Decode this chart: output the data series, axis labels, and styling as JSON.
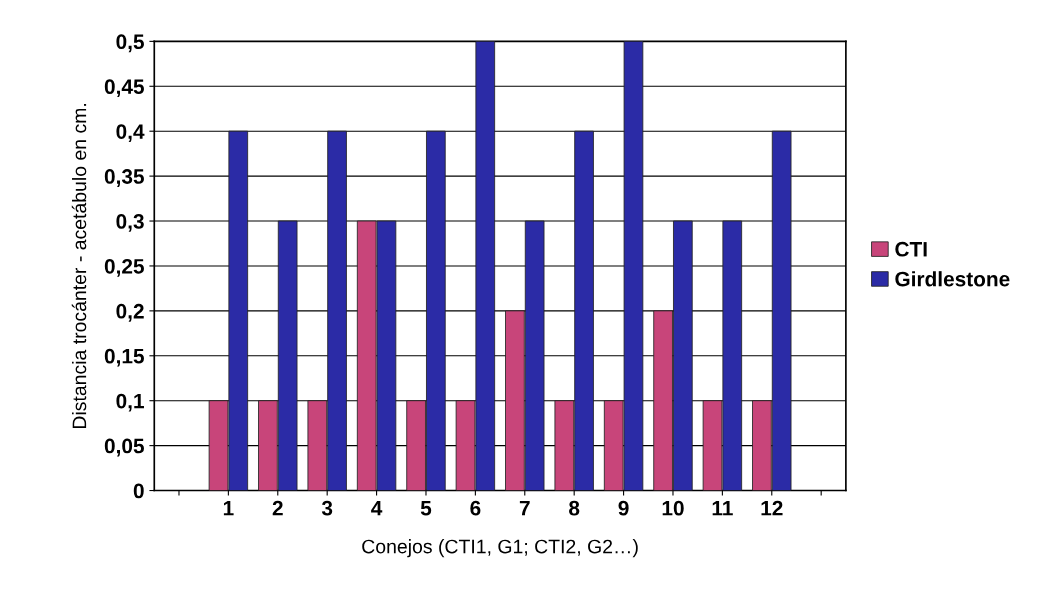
{
  "chart_data": {
    "type": "bar",
    "xlabel": "Conejos (CTI1, G1; CTI2, G2…)",
    "ylabel": "Distancia trocánter - acetábulo en cm.",
    "categories": [
      null,
      "1",
      "2",
      "3",
      "4",
      "5",
      "6",
      "7",
      "8",
      "9",
      "10",
      "11",
      "12",
      null
    ],
    "series": [
      {
        "name": "CTI",
        "color": "#c8457a",
        "values": [
          null,
          0.1,
          0.1,
          0.1,
          0.3,
          0.1,
          0.1,
          0.2,
          0.1,
          0.1,
          0.2,
          0.1,
          0.1,
          null
        ]
      },
      {
        "name": "Girdlestone",
        "color": "#2b2ba6",
        "values": [
          null,
          0.4,
          0.3,
          0.4,
          0.3,
          0.4,
          0.5,
          0.3,
          0.4,
          0.5,
          0.3,
          0.3,
          0.4,
          null
        ]
      }
    ],
    "ylim": [
      0,
      0.5
    ],
    "yticks": [
      0,
      {
        "value": 0.05,
        "label": "0,05"
      },
      {
        "value": 0.1,
        "label": "0,1"
      },
      {
        "value": 0.15,
        "label": "0,15"
      },
      {
        "value": 0.2,
        "label": "0,2"
      },
      {
        "value": 0.25,
        "label": "0,25"
      },
      {
        "value": 0.3,
        "label": "0,3"
      },
      {
        "value": 0.35,
        "label": "0,35"
      },
      {
        "value": 0.4,
        "label": "0,4"
      },
      {
        "value": 0.45,
        "label": "0,45"
      },
      {
        "value": 0.5,
        "label": "0,5"
      }
    ],
    "grid": "y",
    "legend": "right"
  }
}
